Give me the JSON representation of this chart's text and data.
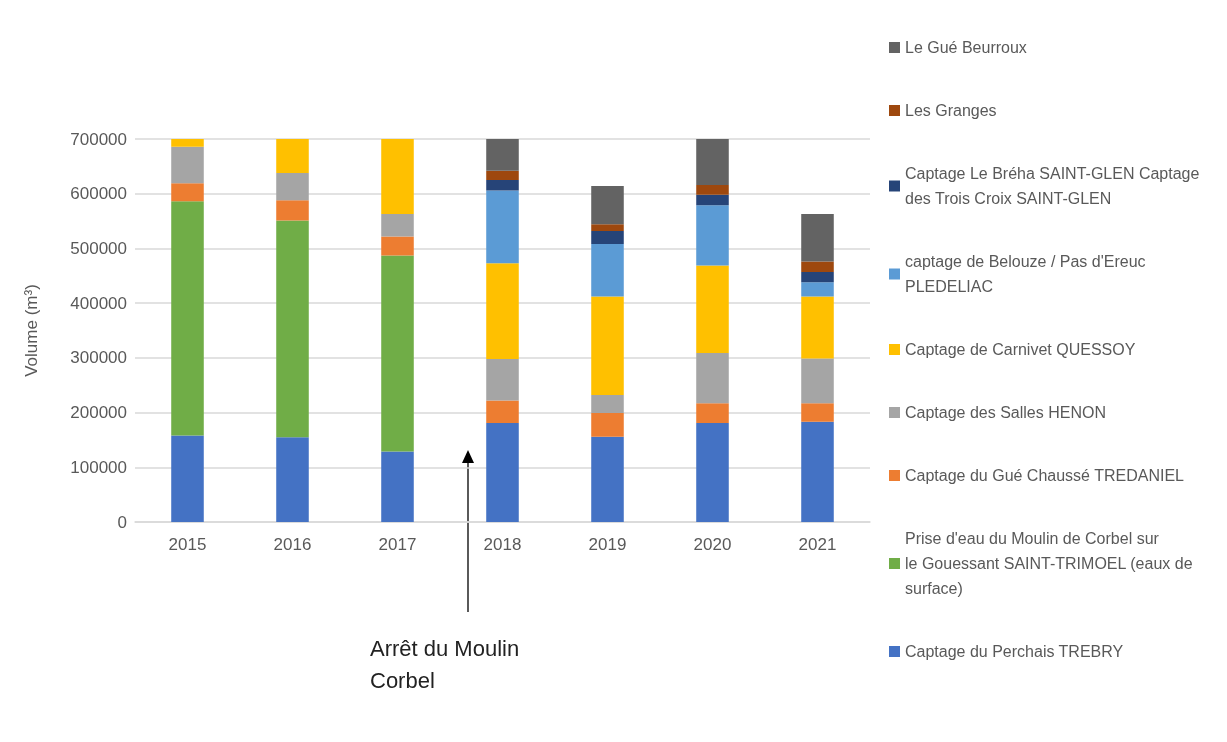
{
  "chart_data": {
    "type": "bar",
    "stacked": true,
    "ylabel": "Volume (m³)",
    "categories": [
      "2015",
      "2016",
      "2017",
      "2018",
      "2019",
      "2020",
      "2021"
    ],
    "ylim": [
      0,
      700000
    ],
    "yticks": [
      0,
      100000,
      200000,
      300000,
      400000,
      500000,
      600000,
      700000
    ],
    "grid": "y",
    "legend": "right",
    "series": [
      {
        "name": "Captage du Perchais TREBRY",
        "color": "#4472c4",
        "values": [
          158000,
          155000,
          129000,
          181000,
          156000,
          181000,
          183000
        ]
      },
      {
        "name": "Prise d'eau du Moulin de Corbel sur le Gouessant SAINT-TRIMOEL (eaux de surface)",
        "color": "#70ad47",
        "values": [
          428000,
          396000,
          358000,
          null,
          null,
          null,
          null
        ]
      },
      {
        "name": "Captage du Gué Chaussé TREDANIEL",
        "color": "#ed7d31",
        "values": [
          33000,
          37000,
          35000,
          41000,
          43000,
          36000,
          34000
        ]
      },
      {
        "name": "Captage des Salles HENON",
        "color": "#a5a5a5",
        "values": [
          67000,
          50000,
          41000,
          76000,
          33000,
          92000,
          82000
        ]
      },
      {
        "name": "Captage de Carnivet QUESSOY",
        "color": "#ffc000",
        "values": [
          14000,
          62000,
          137000,
          175000,
          180000,
          160000,
          113000
        ]
      },
      {
        "name": "captage de Belouze / Pas d'Ereuc PLEDELIAC",
        "color": "#5b9bd5",
        "values": [
          null,
          null,
          null,
          133000,
          96000,
          110000,
          26000
        ]
      },
      {
        "name": "Captage Le Bréha SAINT-GLEN Captage des Trois Croix SAINT-GLEN",
        "color": "#264478",
        "values": [
          null,
          null,
          null,
          19000,
          24000,
          19000,
          19000
        ]
      },
      {
        "name": "Les Granges",
        "color": "#9e480e",
        "values": [
          null,
          null,
          null,
          17000,
          12000,
          18000,
          19000
        ]
      },
      {
        "name": "Le Gué Beurroux",
        "color": "#636363",
        "values": [
          null,
          null,
          null,
          58000,
          70000,
          84000,
          87000
        ]
      }
    ],
    "annotations": [
      "Arrêt du Moulin Corbel"
    ]
  }
}
